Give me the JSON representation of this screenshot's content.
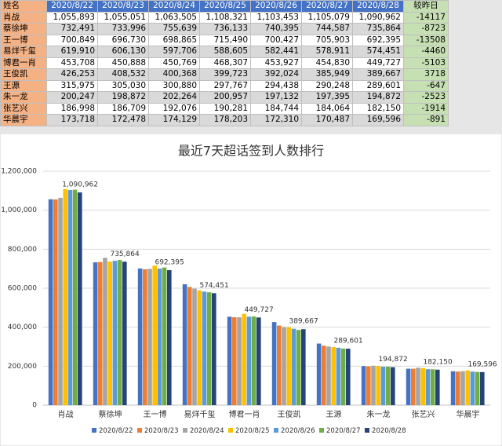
{
  "table": {
    "header": [
      "姓名",
      "2020/8/22",
      "2020/8/23",
      "2020/8/24",
      "2020/8/25",
      "2020/8/26",
      "2020/8/27",
      "2020/8/28",
      "较昨日"
    ],
    "rows": [
      [
        "肖战",
        "1,055,893",
        "1,055,051",
        "1,063,505",
        "1,108,321",
        "1,103,453",
        "1,105,079",
        "1,090,962",
        "-14117"
      ],
      [
        "蔡徐坤",
        "732,491",
        "733,996",
        "755,639",
        "736,133",
        "740,395",
        "744,587",
        "735,864",
        "-8723"
      ],
      [
        "王一博",
        "700,849",
        "696,730",
        "698,865",
        "715,490",
        "700,427",
        "705,903",
        "692,395",
        "-13508"
      ],
      [
        "易烊千玺",
        "619,910",
        "606,130",
        "597,706",
        "588,605",
        "582,441",
        "578,911",
        "574,451",
        "-4460"
      ],
      [
        "博君一肖",
        "453,708",
        "450,888",
        "450,769",
        "468,307",
        "453,927",
        "454,830",
        "449,727",
        "-5103"
      ],
      [
        "王俊凯",
        "426,253",
        "408,532",
        "400,368",
        "399,723",
        "392,024",
        "385,949",
        "389,667",
        "3718"
      ],
      [
        "王源",
        "315,975",
        "305,030",
        "300,880",
        "297,767",
        "294,438",
        "290,248",
        "289,601",
        "-647"
      ],
      [
        "朱一龙",
        "200,247",
        "198,872",
        "202,264",
        "200,957",
        "197,132",
        "197,395",
        "194,872",
        "-2523"
      ],
      [
        "张艺兴",
        "186,998",
        "186,709",
        "192,076",
        "190,281",
        "184,744",
        "184,064",
        "182,150",
        "-1914"
      ],
      [
        "华晨宇",
        "173,718",
        "172,478",
        "174,129",
        "178,203",
        "172,310",
        "170,487",
        "169,596",
        "-891"
      ]
    ]
  },
  "chart_data": {
    "type": "bar",
    "title": "最近7天超话签到人数排行",
    "categories": [
      "肖战",
      "蔡徐坤",
      "王一博",
      "易烊千玺",
      "博君一肖",
      "王俊凯",
      "王源",
      "朱一龙",
      "张艺兴",
      "华晨宇"
    ],
    "series": [
      {
        "name": "2020/8/22",
        "color": "#4472c4",
        "values": [
          1055893,
          732491,
          700849,
          619910,
          453708,
          426253,
          315975,
          200247,
          186998,
          173718
        ]
      },
      {
        "name": "2020/8/23",
        "color": "#ed7d31",
        "values": [
          1055051,
          733996,
          696730,
          606130,
          450888,
          408532,
          305030,
          198872,
          186709,
          172478
        ]
      },
      {
        "name": "2020/8/24",
        "color": "#a5a5a5",
        "values": [
          1063505,
          755639,
          698865,
          597706,
          450769,
          400368,
          300880,
          202264,
          192076,
          174129
        ]
      },
      {
        "name": "2020/8/25",
        "color": "#ffc000",
        "values": [
          1108321,
          736133,
          715490,
          588605,
          468307,
          399723,
          297767,
          200957,
          190281,
          178203
        ]
      },
      {
        "name": "2020/8/26",
        "color": "#5b9bd5",
        "values": [
          1103453,
          740395,
          700427,
          582441,
          453927,
          392024,
          294438,
          197132,
          184744,
          172310
        ]
      },
      {
        "name": "2020/8/27",
        "color": "#70ad47",
        "values": [
          1105079,
          744587,
          705903,
          578911,
          454830,
          385949,
          290248,
          197395,
          184064,
          170487
        ]
      },
      {
        "name": "2020/8/28",
        "color": "#264478",
        "values": [
          1090962,
          735864,
          692395,
          574451,
          449727,
          389667,
          289601,
          194872,
          182150,
          169596
        ],
        "value_labels": [
          "1,090,962",
          "735,864",
          "692,395",
          "574,451",
          "449,727",
          "389,667",
          "289,601",
          "194,872",
          "182,150",
          "169,596"
        ]
      }
    ],
    "ylim": [
      0,
      1200000
    ],
    "yticks": [
      0,
      {
        "value": 200000,
        "label": "200,000"
      },
      {
        "value": 400000,
        "label": "400,000"
      },
      {
        "value": 600000,
        "label": "600,000"
      },
      {
        "value": 800000,
        "label": "800,000"
      },
      {
        "value": 1000000,
        "label": "1,000,000"
      },
      {
        "value": 1200000,
        "label": "1,200,000"
      }
    ],
    "grid": true
  }
}
